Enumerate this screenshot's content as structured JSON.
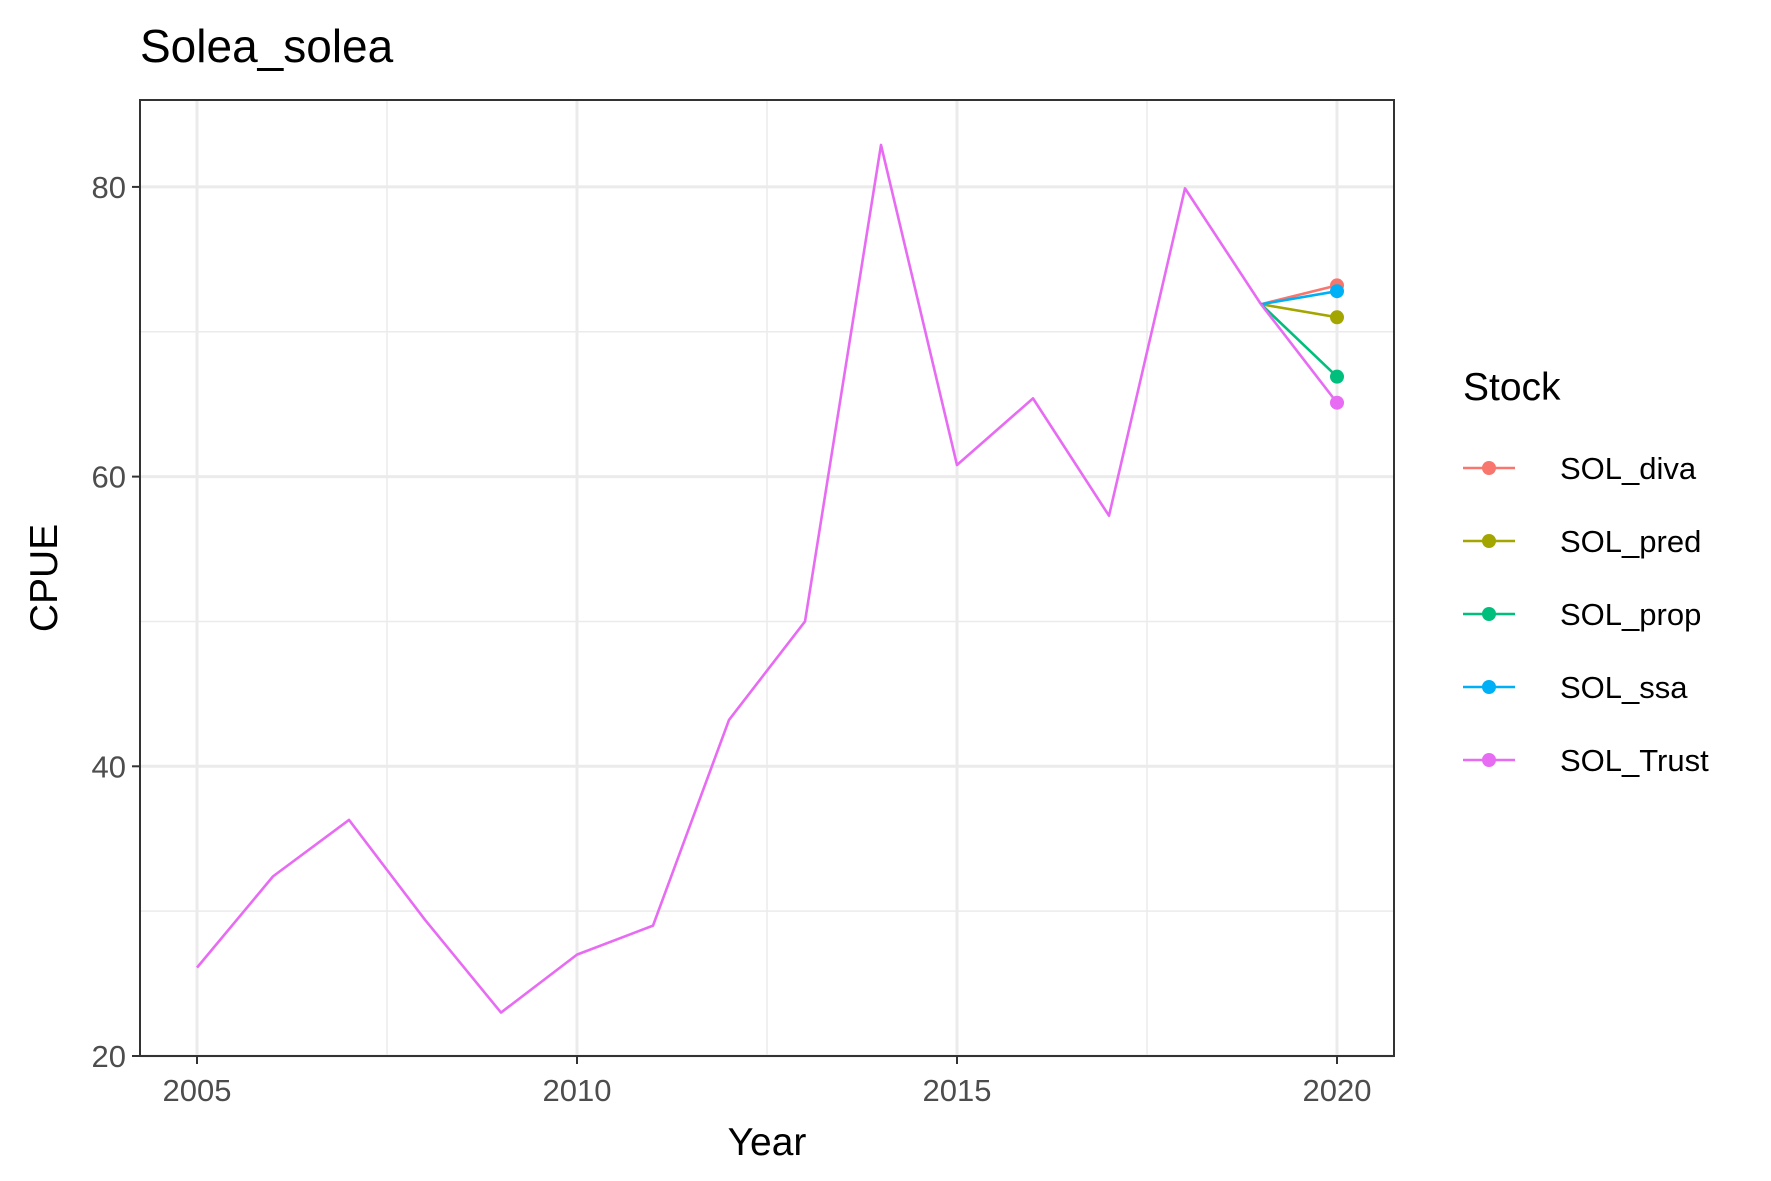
{
  "chart_data": {
    "type": "line",
    "title": "Solea_solea",
    "xlabel": "Year",
    "ylabel": "CPUE",
    "xlim": [
      2004.25,
      2020.75
    ],
    "ylim": [
      20,
      86
    ],
    "x_ticks": [
      2005,
      2010,
      2015,
      2020
    ],
    "x_tick_labels": [
      "2005",
      "2010",
      "2015",
      "2020"
    ],
    "y_ticks": [
      20,
      40,
      60,
      80
    ],
    "y_tick_labels": [
      "20",
      "40",
      "60",
      "80"
    ],
    "x_minor": [
      2007.5,
      2012.5,
      2017.5
    ],
    "y_minor": [
      30,
      50,
      70
    ],
    "grid": true,
    "legend": {
      "title": "Stock",
      "position": "right"
    },
    "history": {
      "series_ref": "SOL_Trust",
      "x": [
        2005,
        2006,
        2007,
        2008,
        2009,
        2010,
        2011,
        2012,
        2013,
        2014,
        2015,
        2016,
        2017,
        2018,
        2019
      ],
      "y": [
        26.1,
        32.4,
        36.3,
        29.4,
        23.0,
        27.0,
        29.0,
        43.2,
        50.0,
        82.9,
        60.8,
        65.4,
        57.3,
        79.9,
        71.9
      ]
    },
    "series": [
      {
        "name": "SOL_diva",
        "color": "#F8766D",
        "x": [
          2019,
          2020
        ],
        "y": [
          71.9,
          73.2
        ]
      },
      {
        "name": "SOL_pred",
        "color": "#A3A500",
        "x": [
          2019,
          2020
        ],
        "y": [
          71.9,
          71.0
        ]
      },
      {
        "name": "SOL_prop",
        "color": "#00BF7D",
        "x": [
          2019,
          2020
        ],
        "y": [
          71.9,
          66.9
        ]
      },
      {
        "name": "SOL_ssa",
        "color": "#00B0F6",
        "x": [
          2019,
          2020
        ],
        "y": [
          71.9,
          72.8
        ]
      },
      {
        "name": "SOL_Trust",
        "color": "#E76BF3",
        "x": [
          2019,
          2020
        ],
        "y": [
          71.9,
          65.1
        ]
      }
    ]
  }
}
